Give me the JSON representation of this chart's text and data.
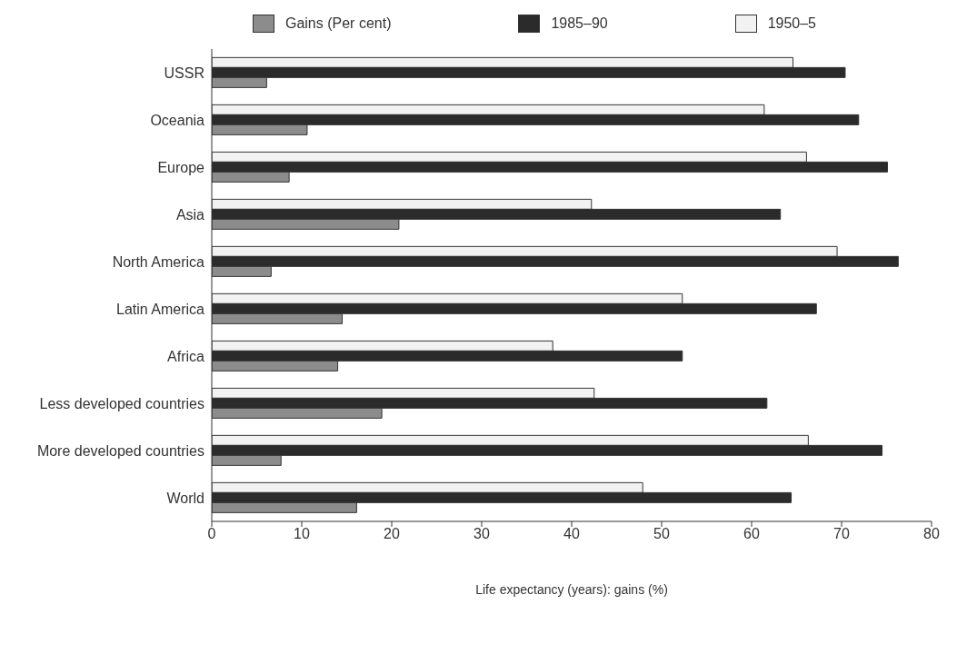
{
  "chart_data": {
    "type": "bar",
    "orientation": "horizontal",
    "xlabel": "Life expectancy (years): gains (%)",
    "categories": [
      "USSR",
      "Oceania",
      "Europe",
      "Asia",
      "North America",
      "Latin America",
      "Africa",
      "Less developed countries",
      "More developed countries",
      "World"
    ],
    "series": [
      {
        "name": "Gains (Per cent)",
        "color": "#8c8c8c",
        "values": [
          6.1,
          10.6,
          8.6,
          20.8,
          6.6,
          14.5,
          14.0,
          18.9,
          7.7,
          16.1
        ]
      },
      {
        "name": "1985–90",
        "color": "#2b2b2b",
        "values": [
          70.4,
          71.9,
          75.1,
          63.2,
          76.3,
          67.2,
          52.3,
          61.7,
          74.5,
          64.4
        ]
      },
      {
        "name": "1950–5",
        "color": "#f2f2f2",
        "values": [
          64.6,
          61.4,
          66.1,
          42.2,
          69.5,
          52.3,
          37.9,
          42.5,
          66.3,
          47.9
        ]
      }
    ],
    "xlim": [
      0,
      80
    ],
    "xticks": [
      0,
      10,
      20,
      30,
      40,
      50,
      60,
      70,
      80
    ],
    "grid": false,
    "legend": "top"
  }
}
